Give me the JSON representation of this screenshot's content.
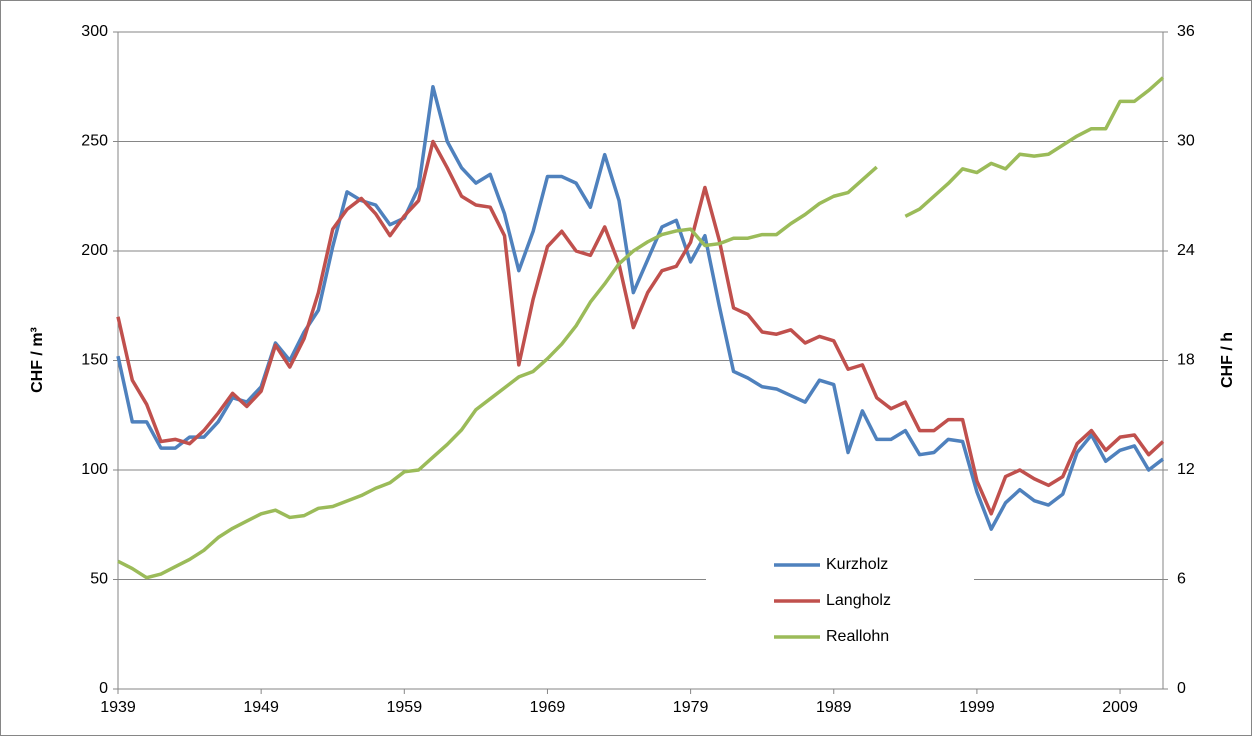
{
  "chart_data": {
    "type": "line",
    "y_label": "CHF / m³",
    "y2_label": "CHF / h",
    "x": [
      1939,
      1940,
      1941,
      1942,
      1943,
      1944,
      1945,
      1946,
      1947,
      1948,
      1949,
      1950,
      1951,
      1952,
      1953,
      1954,
      1955,
      1956,
      1957,
      1958,
      1959,
      1960,
      1961,
      1962,
      1963,
      1964,
      1965,
      1966,
      1967,
      1968,
      1969,
      1970,
      1971,
      1972,
      1973,
      1974,
      1975,
      1976,
      1977,
      1978,
      1979,
      1980,
      1981,
      1982,
      1983,
      1984,
      1985,
      1986,
      1987,
      1988,
      1989,
      1990,
      1991,
      1992,
      1993,
      1994,
      1995,
      1996,
      1997,
      1998,
      1999,
      2000,
      2001,
      2002,
      2003,
      2004,
      2005,
      2006,
      2007,
      2008,
      2009,
      2010,
      2011,
      2012
    ],
    "xlim": [
      1939,
      2012
    ],
    "xticks": [
      1939,
      1949,
      1959,
      1969,
      1979,
      1989,
      1999,
      2009
    ],
    "ylim": [
      0,
      300
    ],
    "yticks": [
      0,
      50,
      100,
      150,
      200,
      250,
      300
    ],
    "y2lim": [
      0,
      36
    ],
    "y2ticks": [
      0,
      6,
      12,
      18,
      24,
      30,
      36
    ],
    "grid": true,
    "legend_position": "bottom",
    "series": [
      {
        "name": "Kurzholz",
        "color": "#4f81bd",
        "values": [
          152,
          122,
          122,
          110,
          110,
          115,
          115,
          122,
          133,
          131,
          138,
          158,
          150,
          163,
          173,
          202,
          227,
          223,
          221,
          212,
          215,
          229,
          275,
          250,
          238,
          231,
          235,
          217,
          191,
          209,
          234,
          234,
          231,
          220,
          244,
          223,
          181,
          196,
          211,
          214,
          195,
          207,
          175,
          145,
          142,
          138,
          137,
          134,
          131,
          141,
          139,
          108,
          127,
          114,
          114,
          118,
          107,
          108,
          114,
          113,
          90,
          73,
          85,
          91,
          86,
          84,
          89,
          108,
          116,
          104,
          109,
          111,
          100,
          105
        ]
      },
      {
        "name": "Langholz",
        "color": "#c0504d",
        "values": [
          170,
          141,
          130,
          113,
          114,
          112,
          118,
          126,
          135,
          129,
          136,
          157,
          147,
          160,
          181,
          210,
          219,
          224,
          217,
          207,
          216,
          223,
          250,
          238,
          225,
          221,
          220,
          207,
          148,
          178,
          202,
          209,
          200,
          198,
          211,
          194,
          165,
          181,
          191,
          193,
          204,
          229,
          205,
          174,
          171,
          163,
          162,
          164,
          158,
          161,
          159,
          146,
          148,
          133,
          128,
          131,
          118,
          118,
          123,
          123,
          95,
          80,
          97,
          100,
          96,
          93,
          97,
          112,
          118,
          109,
          115,
          116,
          107,
          113
        ]
      },
      {
        "name": "Reallohn",
        "color": "#9bbb59",
        "axis": "y2",
        "values": [
          7.0,
          6.6,
          6.1,
          6.3,
          6.7,
          7.1,
          7.6,
          8.3,
          8.8,
          9.2,
          9.6,
          9.8,
          9.4,
          9.5,
          9.9,
          10.0,
          10.3,
          10.6,
          11.0,
          11.3,
          11.9,
          12.0,
          12.7,
          13.4,
          14.2,
          15.3,
          15.9,
          16.5,
          17.1,
          17.4,
          18.1,
          18.9,
          19.9,
          21.2,
          22.2,
          23.3,
          24.0,
          24.5,
          24.9,
          25.1,
          25.2,
          24.3,
          24.4,
          24.7,
          24.7,
          24.9,
          24.9,
          25.5,
          26.0,
          26.6,
          27.0,
          27.2,
          27.9,
          28.6,
          null,
          25.9,
          26.3,
          27.0,
          27.7,
          28.5,
          28.3,
          28.8,
          28.5,
          29.3,
          29.2,
          29.3,
          29.8,
          30.3,
          30.7,
          30.7,
          32.2,
          32.2,
          32.8,
          33.5
        ]
      }
    ]
  }
}
